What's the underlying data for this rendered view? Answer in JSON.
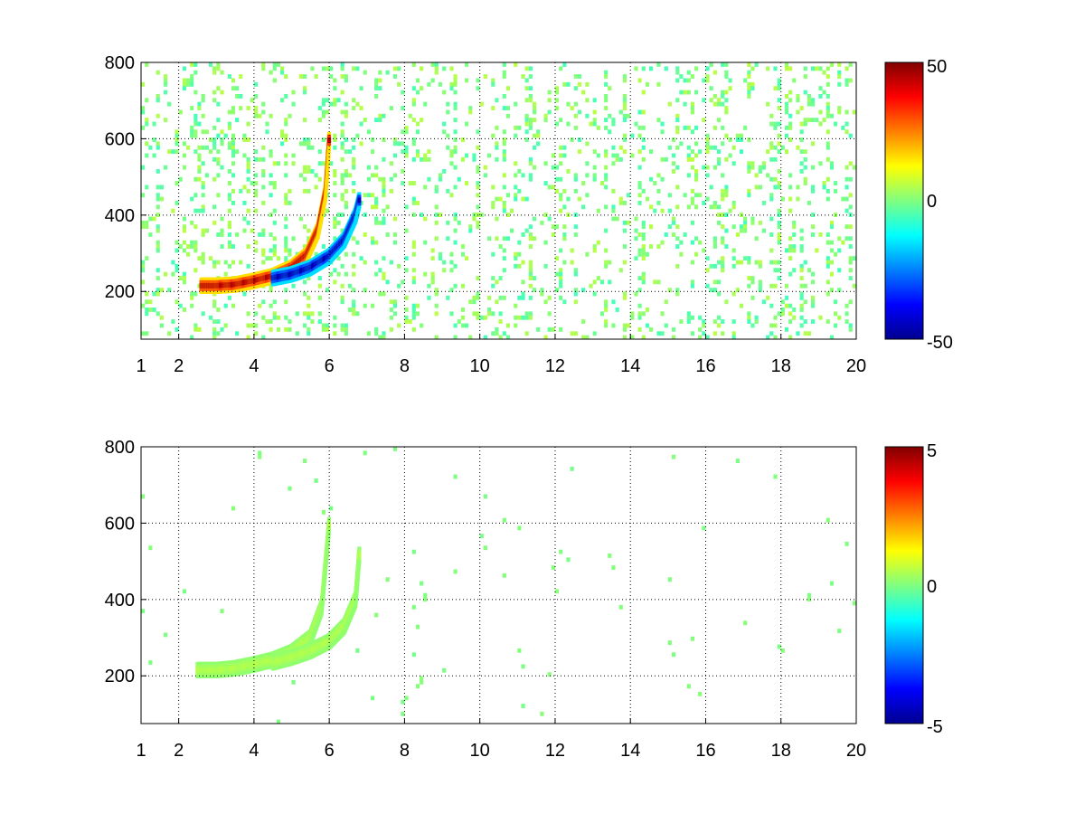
{
  "chart_data": [
    {
      "type": "heatmap",
      "title": "",
      "xlabel": "",
      "ylabel": "",
      "xlim": [
        1,
        20
      ],
      "ylim": [
        75,
        800
      ],
      "x_ticks": [
        1,
        2,
        4,
        6,
        8,
        10,
        12,
        14,
        16,
        18,
        20
      ],
      "x_tick_labels": [
        "1",
        "2",
        "4",
        "6",
        "8",
        "10",
        "12",
        "14",
        "16",
        "18",
        "20"
      ],
      "y_ticks": [
        200,
        400,
        600,
        800
      ],
      "y_tick_labels": [
        "200",
        "400",
        "600",
        "800"
      ],
      "grid": true,
      "colormap": "jet",
      "colorbar": {
        "min": -50,
        "max": 50,
        "tick_labels": [
          "50",
          "0",
          "-50"
        ]
      },
      "features": [
        {
          "name": "positive ridge",
          "sign": "positive",
          "peak_value": 45,
          "points": [
            [
              2.6,
              215
            ],
            [
              3.0,
              215
            ],
            [
              3.5,
              218
            ],
            [
              4.0,
              228
            ],
            [
              4.5,
              240
            ],
            [
              5.0,
              262
            ],
            [
              5.4,
              295
            ],
            [
              5.7,
              360
            ],
            [
              5.9,
              460
            ],
            [
              6.0,
              600
            ]
          ]
        },
        {
          "name": "negative ridge",
          "sign": "negative",
          "peak_value": -45,
          "points": [
            [
              4.5,
              235
            ],
            [
              5.0,
              245
            ],
            [
              5.5,
              262
            ],
            [
              6.0,
              292
            ],
            [
              6.4,
              335
            ],
            [
              6.7,
              400
            ],
            [
              6.8,
              440
            ]
          ]
        }
      ]
    },
    {
      "type": "heatmap",
      "title": "",
      "xlabel": "",
      "ylabel": "",
      "xlim": [
        1,
        20
      ],
      "ylim": [
        75,
        800
      ],
      "x_ticks": [
        1,
        2,
        4,
        6,
        8,
        10,
        12,
        14,
        16,
        18,
        20
      ],
      "x_tick_labels": [
        "1",
        "2",
        "4",
        "6",
        "8",
        "10",
        "12",
        "14",
        "16",
        "18",
        "20"
      ],
      "y_ticks": [
        200,
        400,
        600,
        800
      ],
      "y_tick_labels": [
        "200",
        "400",
        "600",
        "800"
      ],
      "grid": true,
      "colormap": "jet",
      "colorbar": {
        "min": -5,
        "max": 5,
        "tick_labels": [
          "5",
          "0",
          "-5"
        ]
      },
      "features": [
        {
          "name": "near-zero band",
          "sign": "zero",
          "peak_value": 0.5,
          "points": [
            [
              2.5,
              215
            ],
            [
              3.0,
              215
            ],
            [
              3.5,
              220
            ],
            [
              4.0,
              230
            ],
            [
              4.5,
              242
            ],
            [
              5.0,
              262
            ],
            [
              5.5,
              300
            ],
            [
              5.8,
              380
            ],
            [
              6.0,
              600
            ]
          ]
        },
        {
          "name": "near-zero band 2",
          "sign": "zero",
          "peak_value": 0.5,
          "points": [
            [
              4.5,
              235
            ],
            [
              5.0,
              248
            ],
            [
              5.5,
              265
            ],
            [
              6.0,
              290
            ],
            [
              6.4,
              330
            ],
            [
              6.7,
              400
            ],
            [
              6.8,
              520
            ]
          ]
        }
      ]
    }
  ]
}
